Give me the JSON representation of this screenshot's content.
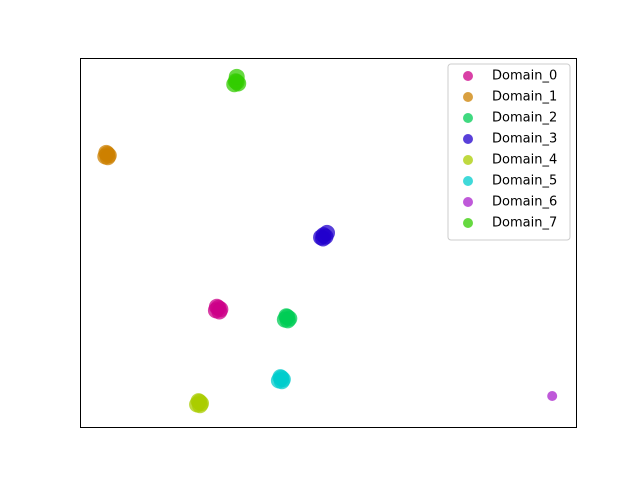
{
  "chart_data": {
    "type": "scatter",
    "xlim": [
      0,
      100
    ],
    "ylim": [
      0,
      100
    ],
    "legend": "upper right",
    "series": [
      {
        "name": "Domain_0",
        "color": "#cc0088",
        "x": [
          27.4,
          27.9,
          28.3,
          27.6,
          28.1
        ],
        "y": [
          31.6,
          32.3,
          31.9,
          32.6,
          31.3
        ]
      },
      {
        "name": "Domain_1",
        "color": "#cc8000",
        "x": [
          5.1,
          5.5,
          5.8,
          5.3,
          5.6
        ],
        "y": [
          73.3,
          74.0,
          73.6,
          74.3,
          73.1
        ]
      },
      {
        "name": "Domain_2",
        "color": "#00cc55",
        "x": [
          41.3,
          41.8,
          42.2,
          41.6,
          41.9
        ],
        "y": [
          29.1,
          29.8,
          29.4,
          30.0,
          28.9
        ]
      },
      {
        "name": "Domain_3",
        "color": "#2200cc",
        "x": [
          48.6,
          49.1,
          49.5,
          49.0,
          49.8
        ],
        "y": [
          51.4,
          52.0,
          51.6,
          51.1,
          52.6
        ]
      },
      {
        "name": "Domain_4",
        "color": "#aacc00",
        "x": [
          23.6,
          24.1,
          24.4,
          23.9,
          24.2
        ],
        "y": [
          6.1,
          6.8,
          6.4,
          7.0,
          5.9
        ]
      },
      {
        "name": "Domain_5",
        "color": "#00cccc",
        "x": [
          40.1,
          40.6,
          40.9,
          40.4,
          40.7
        ],
        "y": [
          12.6,
          13.3,
          12.9,
          13.5,
          12.4
        ]
      },
      {
        "name": "Domain_6",
        "color": "#aa22cc",
        "x": [
          95.2
        ],
        "y": [
          8.4
        ]
      },
      {
        "name": "Domain_7",
        "color": "#33cc00",
        "x": [
          31.1,
          31.6,
          31.9,
          31.4,
          31.6
        ],
        "y": [
          92.9,
          93.5,
          93.1,
          93.7,
          94.9
        ]
      }
    ]
  }
}
